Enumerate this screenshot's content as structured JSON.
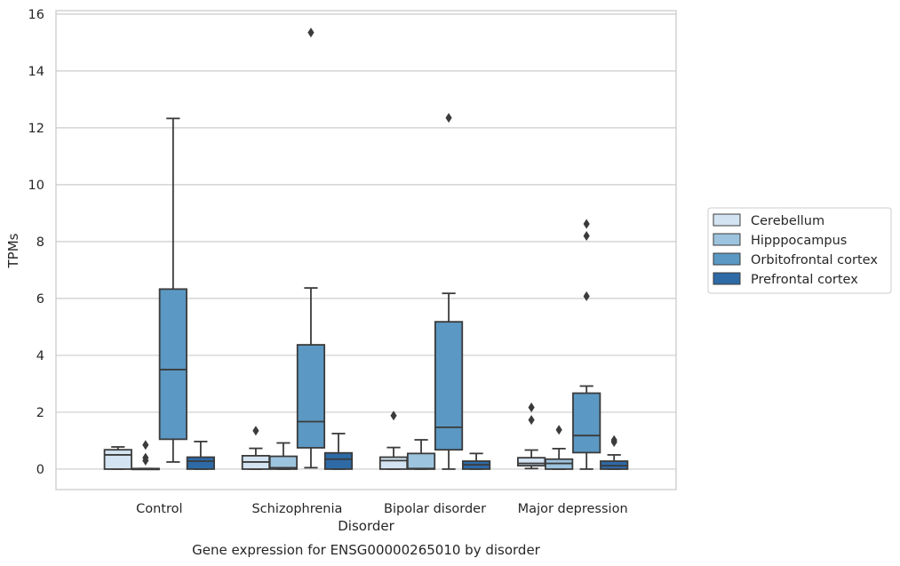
{
  "chart_data": {
    "type": "box",
    "xlabel": "Disorder",
    "ylabel": "TPMs",
    "caption": "Gene expression for ENSG00000265010 by disorder",
    "ylim": [
      -0.72,
      16.12
    ],
    "yticks": [
      0,
      2,
      4,
      6,
      8,
      10,
      12,
      14,
      16
    ],
    "grid": "horizontal",
    "legend_position": "right",
    "categories": [
      "Control",
      "Schizophrenia",
      "Bipolar disorder",
      "Major depression"
    ],
    "series": [
      {
        "name": "Cerebellum",
        "color": "#d4e3f2",
        "boxes": [
          {
            "q1": 0.0,
            "median": 0.5,
            "q3": 0.68,
            "whisker_low": 0.0,
            "whisker_high": 0.78,
            "outliers": []
          },
          {
            "q1": 0.0,
            "median": 0.25,
            "q3": 0.47,
            "whisker_low": 0.0,
            "whisker_high": 0.73,
            "outliers": [
              1.35
            ]
          },
          {
            "q1": 0.0,
            "median": 0.3,
            "q3": 0.42,
            "whisker_low": 0.0,
            "whisker_high": 0.76,
            "outliers": [
              1.88
            ]
          },
          {
            "q1": 0.12,
            "median": 0.2,
            "q3": 0.4,
            "whisker_low": 0.02,
            "whisker_high": 0.67,
            "outliers": [
              1.73,
              2.17
            ]
          }
        ]
      },
      {
        "name": "Hipppocampus",
        "color": "#9dc4de",
        "boxes": [
          {
            "q1": 0.0,
            "median": 0.0,
            "q3": 0.02,
            "whisker_low": 0.0,
            "whisker_high": 0.02,
            "outliers": [
              0.3,
              0.4,
              0.85
            ]
          },
          {
            "q1": 0.0,
            "median": 0.05,
            "q3": 0.45,
            "whisker_low": 0.0,
            "whisker_high": 0.92,
            "outliers": []
          },
          {
            "q1": 0.0,
            "median": 0.02,
            "q3": 0.55,
            "whisker_low": 0.0,
            "whisker_high": 1.03,
            "outliers": []
          },
          {
            "q1": 0.0,
            "median": 0.2,
            "q3": 0.35,
            "whisker_low": 0.0,
            "whisker_high": 0.72,
            "outliers": [
              1.38
            ]
          }
        ]
      },
      {
        "name": "Orbitofrontal cortex",
        "color": "#5b98c3",
        "boxes": [
          {
            "q1": 1.05,
            "median": 3.5,
            "q3": 6.33,
            "whisker_low": 0.25,
            "whisker_high": 12.33,
            "outliers": []
          },
          {
            "q1": 0.75,
            "median": 1.67,
            "q3": 4.37,
            "whisker_low": 0.05,
            "whisker_high": 6.37,
            "outliers": [
              15.35
            ]
          },
          {
            "q1": 0.68,
            "median": 1.47,
            "q3": 5.18,
            "whisker_low": 0.0,
            "whisker_high": 6.18,
            "outliers": [
              12.35
            ]
          },
          {
            "q1": 0.58,
            "median": 1.18,
            "q3": 2.67,
            "whisker_low": 0.0,
            "whisker_high": 2.92,
            "outliers": [
              6.08,
              8.2,
              8.62
            ]
          }
        ]
      },
      {
        "name": "Prefrontal cortex",
        "color": "#2e6aa6",
        "boxes": [
          {
            "q1": 0.0,
            "median": 0.28,
            "q3": 0.42,
            "whisker_low": 0.0,
            "whisker_high": 0.97,
            "outliers": []
          },
          {
            "q1": 0.0,
            "median": 0.35,
            "q3": 0.57,
            "whisker_low": 0.0,
            "whisker_high": 1.25,
            "outliers": []
          },
          {
            "q1": 0.0,
            "median": 0.15,
            "q3": 0.28,
            "whisker_low": 0.0,
            "whisker_high": 0.55,
            "outliers": []
          },
          {
            "q1": 0.0,
            "median": 0.12,
            "q3": 0.28,
            "whisker_low": 0.0,
            "whisker_high": 0.5,
            "outliers": [
              0.95,
              1.02
            ]
          }
        ]
      }
    ]
  }
}
